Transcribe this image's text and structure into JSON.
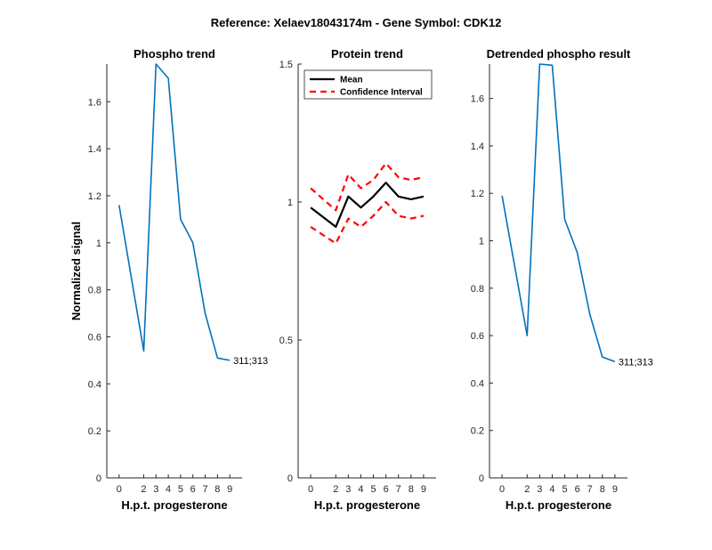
{
  "figure": {
    "suptitle": "Reference:  Xelaev18043174m - Gene Symbol:  CDK12"
  },
  "colors": {
    "phospho_line": "#0072BD",
    "mean_line": "#000000",
    "ci_line": "#FF0000",
    "axis": "#262626"
  },
  "chart_data": [
    {
      "type": "line",
      "title": "Phospho trend",
      "xlabel": "H.p.t. progesterone",
      "ylabel": "Normalized signal",
      "x_ticks": [
        0,
        2,
        3,
        4,
        5,
        6,
        7,
        8,
        9
      ],
      "x_tick_labels": [
        "0",
        "2",
        "3",
        "4",
        "5",
        "6",
        "7",
        "8",
        "9"
      ],
      "y_ticks": [
        0,
        0.2,
        0.4,
        0.6,
        0.8,
        1,
        1.2,
        1.4,
        1.6
      ],
      "y_tick_labels": [
        "0",
        "0.2",
        "0.4",
        "0.6",
        "0.8",
        "1",
        "1.2",
        "1.4",
        "1.6"
      ],
      "ylim": [
        0,
        1.76
      ],
      "grid": false,
      "series": [
        {
          "x": [
            0,
            2,
            3,
            4,
            5,
            6,
            7,
            8,
            9
          ],
          "values": [
            1.16,
            0.54,
            1.76,
            1.7,
            1.1,
            1.0,
            0.7,
            0.51,
            0.5
          ]
        }
      ],
      "annotation": "311;313"
    },
    {
      "type": "line",
      "title": "Protein trend",
      "xlabel": "H.p.t. progesterone",
      "x_ticks": [
        0,
        2,
        3,
        4,
        5,
        6,
        7,
        8,
        9
      ],
      "x_tick_labels": [
        "0",
        "2",
        "3",
        "4",
        "5",
        "6",
        "7",
        "8",
        "9"
      ],
      "y_ticks": [
        0,
        0.5,
        1,
        1.5
      ],
      "y_tick_labels": [
        "0",
        "0.5",
        "1",
        "1.5"
      ],
      "ylim": [
        0,
        1.5
      ],
      "grid": false,
      "legend_position": "top-left",
      "series": [
        {
          "name": "Mean",
          "style": "solid",
          "x": [
            0,
            2,
            3,
            4,
            5,
            6,
            7,
            8,
            9
          ],
          "values": [
            0.98,
            0.91,
            1.02,
            0.98,
            1.02,
            1.07,
            1.02,
            1.01,
            1.02
          ]
        },
        {
          "name": "Confidence Interval",
          "style": "dashed",
          "x": [
            0,
            2,
            3,
            4,
            5,
            6,
            7,
            8,
            9
          ],
          "values": [
            1.05,
            0.97,
            1.1,
            1.05,
            1.08,
            1.14,
            1.09,
            1.08,
            1.09
          ]
        },
        {
          "style": "dashed",
          "x": [
            0,
            2,
            3,
            4,
            5,
            6,
            7,
            8,
            9
          ],
          "values": [
            0.91,
            0.85,
            0.94,
            0.91,
            0.95,
            1.0,
            0.95,
            0.94,
            0.95
          ]
        }
      ]
    },
    {
      "type": "line",
      "title": "Detrended phospho result",
      "xlabel": "H.p.t. progesterone",
      "x_ticks": [
        0,
        2,
        3,
        4,
        5,
        6,
        7,
        8,
        9
      ],
      "x_tick_labels": [
        "0",
        "2",
        "3",
        "4",
        "5",
        "6",
        "7",
        "8",
        "9"
      ],
      "y_ticks": [
        0,
        0.2,
        0.4,
        0.6,
        0.8,
        1,
        1.2,
        1.4,
        1.6
      ],
      "y_tick_labels": [
        "0",
        "0.2",
        "0.4",
        "0.6",
        "0.8",
        "1",
        "1.2",
        "1.4",
        "1.6"
      ],
      "ylim": [
        0,
        1.745
      ],
      "grid": false,
      "series": [
        {
          "x": [
            0,
            2,
            3,
            4,
            5,
            6,
            7,
            8,
            9
          ],
          "values": [
            1.19,
            0.6,
            1.745,
            1.74,
            1.09,
            0.95,
            0.69,
            0.51,
            0.49
          ]
        }
      ],
      "annotation": "311;313"
    }
  ]
}
